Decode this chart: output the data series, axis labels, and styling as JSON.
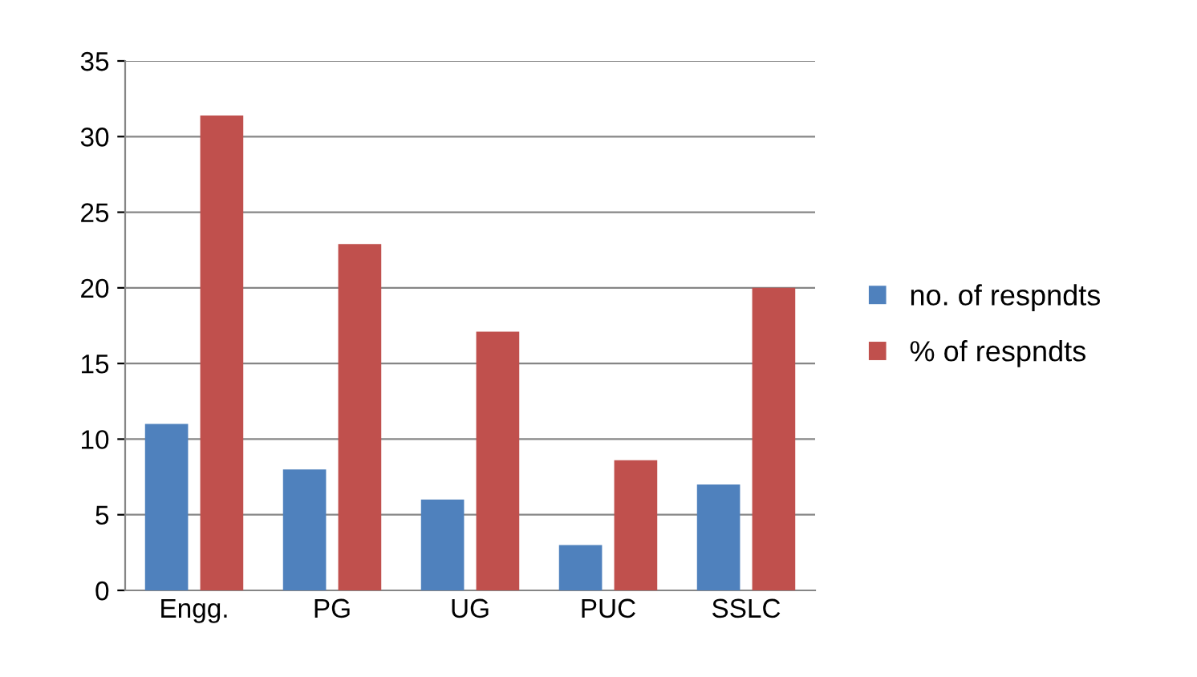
{
  "chart_data": {
    "type": "bar",
    "categories": [
      "Engg.",
      "PG",
      "UG",
      "PUC",
      "SSLC"
    ],
    "series": [
      {
        "name": "no. of respndts",
        "color": "#4f81bd",
        "values": [
          11,
          8,
          6,
          3,
          7
        ]
      },
      {
        "name": "% of respndts",
        "color": "#c0504d",
        "values": [
          31.4,
          22.9,
          17.1,
          8.6,
          20
        ]
      }
    ],
    "ylim": [
      0,
      35
    ],
    "yticks": [
      0,
      5,
      10,
      15,
      20,
      25,
      30,
      35
    ],
    "grid": "y",
    "legend": "right"
  }
}
